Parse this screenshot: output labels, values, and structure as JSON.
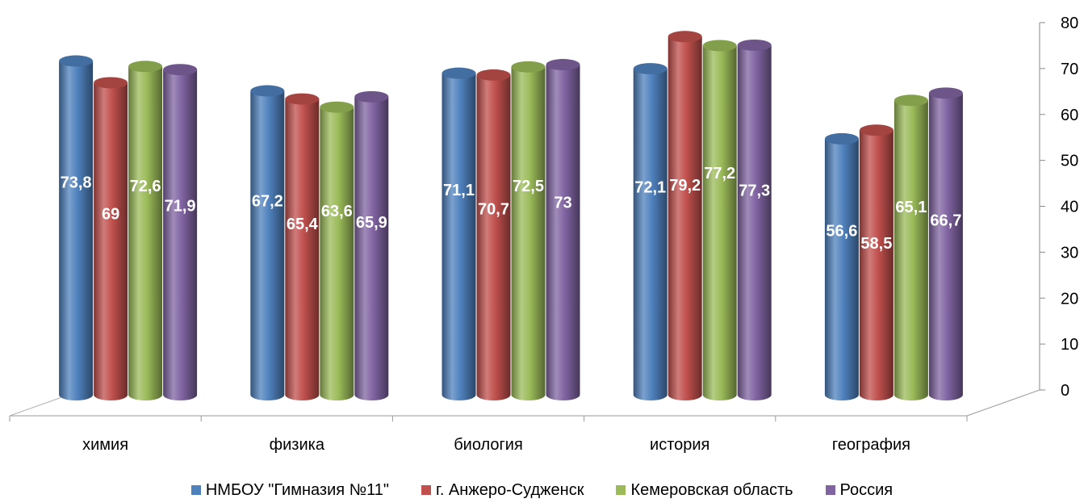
{
  "chart_data": {
    "type": "bar",
    "title": "",
    "xlabel": "",
    "ylabel": "",
    "ylim": [
      0,
      80
    ],
    "yticks": [
      0,
      10,
      20,
      30,
      40,
      50,
      60,
      70,
      80
    ],
    "grid": false,
    "legend_position": "bottom",
    "style": "3d-cylinder",
    "categories": [
      "химия",
      "физика",
      "биология",
      "история",
      "география"
    ],
    "series": [
      {
        "name": "НМБОУ \"Гимназия №11\"",
        "color": "#4F81BD",
        "values": [
          73.8,
          67.2,
          71.1,
          72.1,
          56.6
        ],
        "labels": [
          "73,8",
          "67,2",
          "71,1",
          "72,1",
          "56,6"
        ]
      },
      {
        "name": "г. Анжеро-Судженск",
        "color": "#C0504D",
        "values": [
          69,
          65.4,
          70.7,
          79.2,
          58.5
        ],
        "labels": [
          "69",
          "65,4",
          "70,7",
          "79,2",
          "58,5"
        ]
      },
      {
        "name": "Кемеровская область",
        "color": "#9BBB59",
        "values": [
          72.6,
          63.6,
          72.5,
          77.2,
          65.1
        ],
        "labels": [
          "72,6",
          "63,6",
          "72,5",
          "77,2",
          "65,1"
        ]
      },
      {
        "name": "Россия",
        "color": "#8064A2",
        "values": [
          71.9,
          65.9,
          73,
          77.3,
          66.7
        ],
        "labels": [
          "71,9",
          "65,9",
          "73",
          "77,3",
          "66,7"
        ]
      }
    ]
  }
}
